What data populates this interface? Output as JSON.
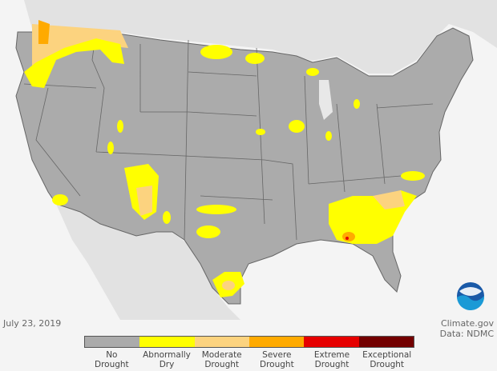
{
  "map": {
    "title": "",
    "background_color": "#f4f4f4",
    "land_color": "#ababab",
    "neighbor_color": "#e2e2e2"
  },
  "date": "July 23, 2019",
  "credit": {
    "line1": "Climate.gov",
    "line2": "Data: NDMC"
  },
  "logo": {
    "text": "NOAA"
  },
  "legend": [
    {
      "line1": "No",
      "line2": "Drought",
      "color": "#ababab"
    },
    {
      "line1": "Abnormally",
      "line2": "Dry",
      "color": "#ffff00"
    },
    {
      "line1": "Moderate",
      "line2": "Drought",
      "color": "#fcd37f"
    },
    {
      "line1": "Severe",
      "line2": "Drought",
      "color": "#ffaa00"
    },
    {
      "line1": "Extreme",
      "line2": "Drought",
      "color": "#e60000"
    },
    {
      "line1": "Exceptional",
      "line2": "Drought",
      "color": "#730000"
    }
  ]
}
